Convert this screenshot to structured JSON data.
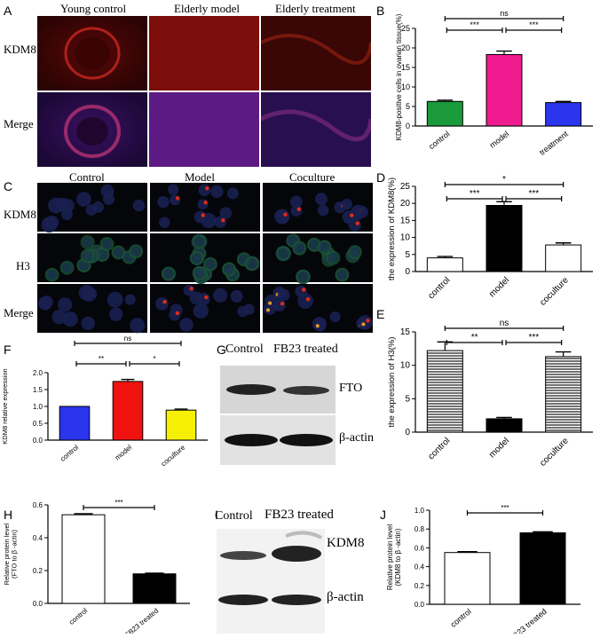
{
  "panels": {
    "A": {
      "letter": "A",
      "col_titles": [
        "Young control",
        "Elderly model",
        "Elderly treatment"
      ],
      "row_labels": [
        "KDM8",
        "Merge"
      ]
    },
    "C": {
      "letter": "C",
      "col_titles": [
        "Control",
        "Model",
        "Coculture"
      ],
      "row_labels": [
        "KDM8",
        "H3",
        "Merge"
      ]
    },
    "G": {
      "letter": "G",
      "col_titles": [
        "Control",
        "FB23 treated"
      ],
      "bands": [
        "FTO",
        "β-actin"
      ]
    },
    "I": {
      "letter": "I",
      "col_titles": [
        "Control",
        "FB23 treated"
      ],
      "bands": [
        "KDM8",
        "β-actin"
      ]
    }
  },
  "colors": {
    "green": "#1a9a3a",
    "pink": "#ef1b8f",
    "blue": "#2b35ee",
    "red": "#f0120f",
    "yellow": "#f6f006",
    "black": "#000000",
    "white": "#ffffff"
  },
  "chart_data": [
    {
      "id": "B",
      "letter": "B",
      "type": "bar",
      "categories": [
        "control",
        "model",
        "treatment"
      ],
      "values": [
        6.3,
        18.3,
        6.0
      ],
      "errors": [
        0.3,
        0.9,
        0.3
      ],
      "ylabel": "KDM8-positive cells in ovarian tissue(%)",
      "ylim": [
        0,
        25
      ],
      "yticks": [
        0,
        5,
        10,
        15,
        20,
        25
      ],
      "colors": [
        "#1a9a3a",
        "#ef1b8f",
        "#2b35ee"
      ],
      "sig": [
        {
          "from": 0,
          "to": 1,
          "label": "***"
        },
        {
          "from": 1,
          "to": 2,
          "label": "***"
        },
        {
          "from": 0,
          "to": 2,
          "label": "ns"
        }
      ]
    },
    {
      "id": "D",
      "letter": "D",
      "type": "bar",
      "categories": [
        "control",
        "model",
        "coculture"
      ],
      "values": [
        4.0,
        19.4,
        7.8
      ],
      "errors": [
        0.4,
        1.1,
        0.6
      ],
      "ylabel": "the expression of KDM8(%)",
      "ylim": [
        0,
        25
      ],
      "yticks": [
        0,
        5,
        10,
        15,
        20,
        25
      ],
      "colors": [
        "#ffffff",
        "#000000",
        "#ffffff"
      ],
      "sig": [
        {
          "from": 0,
          "to": 1,
          "label": "***"
        },
        {
          "from": 1,
          "to": 2,
          "label": "***"
        },
        {
          "from": 0,
          "to": 2,
          "label": "*"
        }
      ]
    },
    {
      "id": "E",
      "letter": "E",
      "type": "bar",
      "categories": [
        "control",
        "model",
        "coculture"
      ],
      "values": [
        12.2,
        2.0,
        11.3
      ],
      "errors": [
        1.3,
        0.2,
        0.7
      ],
      "ylabel": "the expression of H3(%)",
      "ylim": [
        0,
        15
      ],
      "yticks": [
        0,
        5,
        10,
        15
      ],
      "colors": [
        "hatch",
        "#000000",
        "hatch"
      ],
      "sig": [
        {
          "from": 0,
          "to": 1,
          "label": "**"
        },
        {
          "from": 1,
          "to": 2,
          "label": "***"
        },
        {
          "from": 0,
          "to": 2,
          "label": "ns"
        }
      ]
    },
    {
      "id": "F",
      "letter": "F",
      "type": "bar",
      "categories": [
        "control",
        "model",
        "coculture"
      ],
      "values": [
        1.0,
        1.74,
        0.89
      ],
      "errors": [
        0.0,
        0.06,
        0.03
      ],
      "ylabel": "KDM8 relative expression",
      "ylim": [
        0,
        2.0
      ],
      "yticks": [
        "0.0",
        "0.5",
        "1.0",
        "1.5",
        "2.0"
      ],
      "colors": [
        "#2b35ee",
        "#f0120f",
        "#f6f006"
      ],
      "sig": [
        {
          "from": 0,
          "to": 1,
          "label": "**"
        },
        {
          "from": 1,
          "to": 2,
          "label": "*"
        },
        {
          "from": 0,
          "to": 2,
          "label": "ns"
        }
      ]
    },
    {
      "id": "H",
      "letter": "H",
      "type": "bar",
      "categories": [
        "control",
        "FB23 treated"
      ],
      "values": [
        0.54,
        0.18
      ],
      "errors": [
        0.006,
        0.004
      ],
      "ylabel": "Relative protein level",
      "ylabel2": "(FTO to β -actin)",
      "ylim": [
        0,
        0.6
      ],
      "yticks": [
        "0.0",
        "0.2",
        "0.4",
        "0.6"
      ],
      "colors": [
        "#ffffff",
        "#000000"
      ],
      "sig": [
        {
          "from": 0,
          "to": 1,
          "label": "***"
        }
      ]
    },
    {
      "id": "J",
      "letter": "J",
      "type": "bar",
      "categories": [
        "control",
        "FB23 treated"
      ],
      "values": [
        0.55,
        0.76
      ],
      "errors": [
        0.01,
        0.01
      ],
      "ylabel": "Relative protein level",
      "ylabel2": "(KDM8 to β -actin)",
      "ylim": [
        0,
        1.0
      ],
      "yticks": [
        "0.0",
        "0.2",
        "0.4",
        "0.6",
        "0.8",
        "1.0"
      ],
      "colors": [
        "#ffffff",
        "#000000"
      ],
      "sig": [
        {
          "from": 0,
          "to": 1,
          "label": "***"
        }
      ]
    }
  ]
}
